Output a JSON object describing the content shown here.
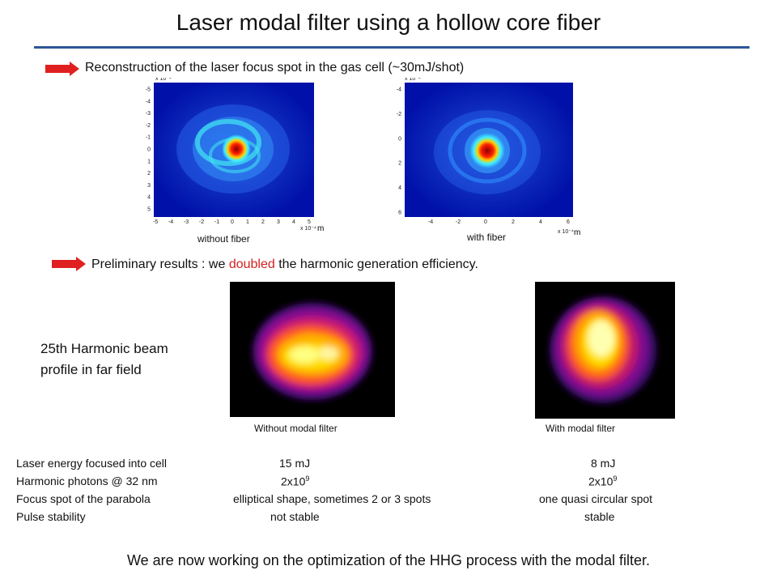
{
  "slide": {
    "title": "Laser modal filter using a hollow core fiber",
    "bullet1": "Reconstruction  of the laser focus spot in the gas cell (~30mJ/shot)",
    "bullet2_pre": "Preliminary results : we ",
    "bullet2_red": "doubled",
    "bullet2_post": " the harmonic generation efficiency.",
    "colors": {
      "title_rule": "#2e5597",
      "arrow": "#e02020",
      "highlight": "#d42020"
    }
  },
  "focus_plots": {
    "left": {
      "caption": "without fiber",
      "exponent_label": "x 10⁻⁴",
      "x_ticks": [
        "-5",
        "-4",
        "-3",
        "-2",
        "-1",
        "0",
        "1",
        "2",
        "3",
        "4",
        "5"
      ],
      "y_ticks": [
        "-5",
        "-4",
        "-3",
        "-2",
        "-1",
        "0",
        "1",
        "2",
        "3",
        "4",
        "5"
      ],
      "unit": "m"
    },
    "right": {
      "caption": "with fiber",
      "exponent_label": "x 10⁻⁴",
      "x_ticks": [
        "-4",
        "-2",
        "0",
        "2",
        "4",
        "6"
      ],
      "y_ticks": [
        "-4",
        "-2",
        "0",
        "2",
        "4",
        "6"
      ],
      "unit": "m"
    }
  },
  "harmonic": {
    "side_label_line1": "25th Harmonic beam",
    "side_label_line2": "profile in far field",
    "left_caption": "Without  modal filter",
    "right_caption": "With modal filter"
  },
  "table": {
    "rows": [
      {
        "label": "Laser energy focused into cell",
        "without": "15 mJ",
        "with": "8 mJ"
      },
      {
        "label": "Harmonic photons @ 32 nm",
        "without_base": "2x10",
        "without_exp": "9",
        "with_base": "2x10",
        "with_exp": "9"
      },
      {
        "label": "Focus spot of the parabola",
        "without": "elliptical shape, sometimes 2 or 3 spots",
        "with": "one quasi circular spot"
      },
      {
        "label": "Pulse stability",
        "without": "not stable",
        "with": "stable"
      }
    ]
  },
  "footer": "We are now working on the optimization of the HHG process with the modal filter."
}
